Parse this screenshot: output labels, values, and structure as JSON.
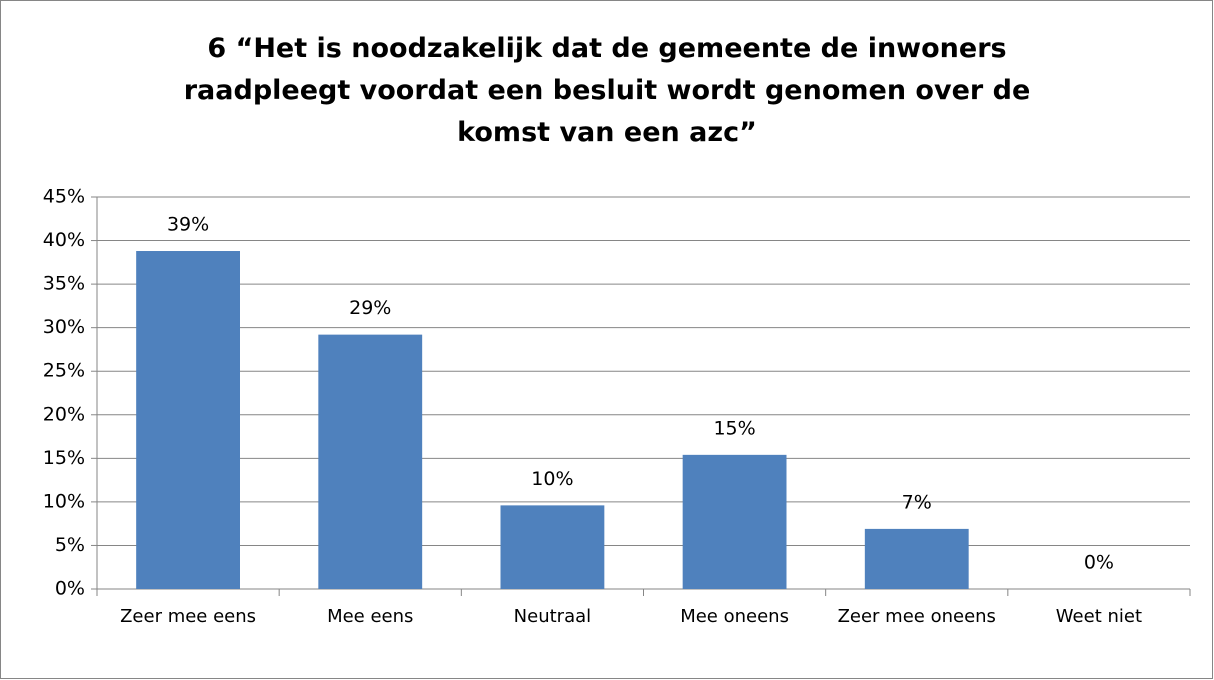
{
  "chart_data": {
    "type": "bar",
    "title": "6 “Het is noodzakelijk dat de gemeente de inwoners raadpleegt voordat een besluit wordt genomen over de komst van een azc”",
    "categories": [
      "Zeer mee eens",
      "Mee eens",
      "Neutraal",
      "Mee oneens",
      "Zeer mee oneens",
      "Weet niet"
    ],
    "values": [
      38.8,
      29.2,
      9.6,
      15.4,
      6.9,
      0
    ],
    "value_labels": [
      "39%",
      "29%",
      "10%",
      "15%",
      "7%",
      "0%"
    ],
    "color": "#4f81bd",
    "ylim": [
      0,
      45
    ],
    "yticks": [
      {
        "value": 0,
        "label": "0%"
      },
      {
        "value": 5,
        "label": "5%"
      },
      {
        "value": 10,
        "label": "10%"
      },
      {
        "value": 15,
        "label": "15%"
      },
      {
        "value": 20,
        "label": "20%"
      },
      {
        "value": 25,
        "label": "25%"
      },
      {
        "value": 30,
        "label": "30%"
      },
      {
        "value": 35,
        "label": "35%"
      },
      {
        "value": 40,
        "label": "40%"
      },
      {
        "value": 45,
        "label": "45%"
      }
    ],
    "grid": true
  }
}
